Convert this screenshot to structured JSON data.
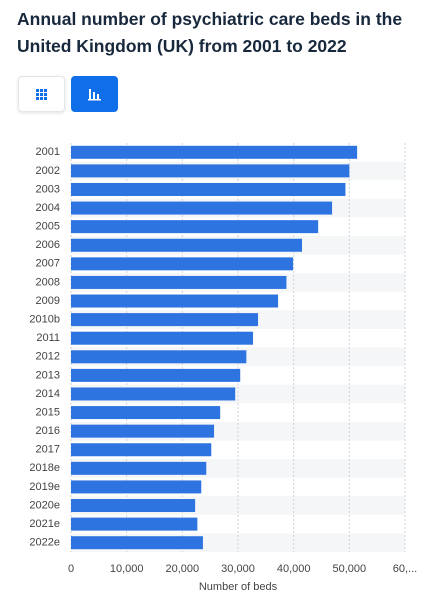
{
  "chart_data": {
    "type": "bar",
    "title": "Annual number of psychiatric care beds in the United Kingdom (UK) from 2001 to 2022",
    "categories": [
      "2001",
      "2002",
      "2003",
      "2004",
      "2005",
      "2006",
      "2007",
      "2008",
      "2009",
      "2010b",
      "2011",
      "2012",
      "2013",
      "2014",
      "2015",
      "2016",
      "2017",
      "2018e",
      "2019e",
      "2020e",
      "2021e",
      "2022e"
    ],
    "values": [
      51400,
      50000,
      49300,
      46900,
      44400,
      41500,
      39900,
      38700,
      37200,
      33600,
      32700,
      31500,
      30400,
      29500,
      26800,
      25700,
      25200,
      24300,
      23400,
      22300,
      22700,
      23700
    ],
    "color": "#2d74e0",
    "xlim": [
      0,
      60000
    ],
    "xticks": [
      0,
      {
        "value": 10000,
        "label": "10,000"
      },
      {
        "value": 20000,
        "label": "20,000"
      },
      {
        "value": 30000,
        "label": "30,000"
      },
      {
        "value": 40000,
        "label": "40,000"
      },
      {
        "value": 50000,
        "label": "50,000"
      },
      {
        "value": 60000,
        "label": "60,..."
      }
    ],
    "xlabel": "Number of beds",
    "grid": true
  }
}
